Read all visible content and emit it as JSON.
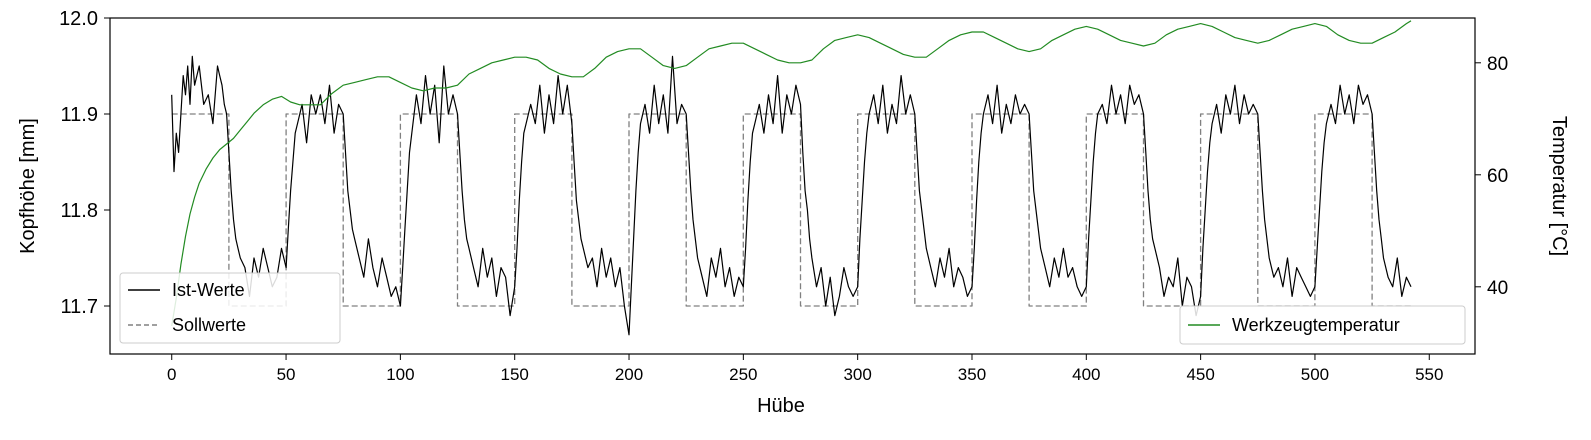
{
  "chart_data": {
    "type": "line",
    "xlabel": "Hübe",
    "ylabel_left": "Kopfhöhe [mm]",
    "ylabel_right": "Temperatur [°C]",
    "xlim": [
      -27,
      570
    ],
    "ylim_left": [
      11.65,
      12.0
    ],
    "ylim_right": [
      28.0,
      88.0
    ],
    "x_ticks": [
      0,
      50,
      100,
      150,
      200,
      250,
      300,
      350,
      400,
      450,
      500,
      550
    ],
    "x_tick_labels": [
      "0",
      "50",
      "100",
      "150",
      "200",
      "250",
      "300",
      "350",
      "400",
      "450",
      "500",
      "550"
    ],
    "y_left_ticks": [
      11.7,
      11.8,
      11.9,
      12.0
    ],
    "y_left_tick_labels": [
      "11.7",
      "11.8",
      "11.9",
      "12.0"
    ],
    "y_right_ticks": [
      40,
      60,
      80
    ],
    "y_right_tick_labels": [
      "40",
      "60",
      "80"
    ],
    "grid": false,
    "legend_left_position": "lower-left",
    "legend_right_position": "lower-right",
    "legend_left": [
      {
        "label": "Ist-Werte",
        "color": "#000000",
        "style": "solid"
      },
      {
        "label": "Sollwerte",
        "color": "#808080",
        "style": "dashed"
      }
    ],
    "legend_right": [
      {
        "label": "Werkzeugtemperatur",
        "color": "#228B22",
        "style": "solid"
      }
    ],
    "series": [
      {
        "name": "Sollwerte",
        "axis": "left",
        "color": "#808080",
        "style": "dashed",
        "x": [
          0,
          25,
          25,
          50,
          50,
          75,
          75,
          100,
          100,
          125,
          125,
          150,
          150,
          175,
          175,
          200,
          200,
          225,
          225,
          250,
          250,
          275,
          275,
          300,
          300,
          325,
          325,
          350,
          350,
          375,
          375,
          400,
          400,
          425,
          425,
          450,
          450,
          475,
          475,
          500,
          500,
          525,
          525,
          542
        ],
        "y": [
          11.9,
          11.9,
          11.7,
          11.7,
          11.9,
          11.9,
          11.7,
          11.7,
          11.9,
          11.9,
          11.7,
          11.7,
          11.9,
          11.9,
          11.7,
          11.7,
          11.9,
          11.9,
          11.7,
          11.7,
          11.9,
          11.9,
          11.7,
          11.7,
          11.9,
          11.9,
          11.7,
          11.7,
          11.9,
          11.9,
          11.7,
          11.7,
          11.9,
          11.9,
          11.7,
          11.7,
          11.9,
          11.9,
          11.7,
          11.7,
          11.9,
          11.9,
          11.7,
          11.7
        ]
      },
      {
        "name": "Ist-Werte",
        "axis": "left",
        "color": "#000000",
        "style": "solid",
        "x": [
          0,
          1,
          2,
          3,
          4,
          5,
          6,
          7,
          8,
          9,
          10,
          12,
          14,
          16,
          18,
          20,
          21,
          22,
          23,
          24,
          25,
          26,
          27,
          28,
          29,
          30,
          32,
          34,
          36,
          38,
          40,
          42,
          44,
          46,
          48,
          50,
          51,
          52,
          53,
          54,
          55,
          57,
          59,
          61,
          63,
          65,
          67,
          69,
          71,
          73,
          75,
          76,
          77,
          78,
          79,
          80,
          82,
          84,
          86,
          88,
          90,
          92,
          94,
          96,
          98,
          100,
          101,
          102,
          103,
          104,
          105,
          107,
          109,
          111,
          113,
          115,
          117,
          119,
          121,
          123,
          125,
          126,
          127,
          128,
          129,
          130,
          132,
          134,
          136,
          138,
          140,
          142,
          144,
          146,
          148,
          150,
          151,
          152,
          153,
          154,
          155,
          157,
          159,
          161,
          163,
          165,
          167,
          169,
          171,
          173,
          175,
          176,
          177,
          178,
          179,
          180,
          182,
          184,
          186,
          188,
          190,
          192,
          194,
          196,
          198,
          200,
          201,
          202,
          203,
          204,
          205,
          207,
          209,
          211,
          213,
          215,
          217,
          219,
          221,
          223,
          225,
          226,
          227,
          228,
          229,
          230,
          232,
          234,
          236,
          238,
          240,
          242,
          244,
          246,
          248,
          250,
          251,
          252,
          253,
          254,
          255,
          257,
          259,
          261,
          263,
          265,
          267,
          269,
          271,
          273,
          275,
          276,
          277,
          278,
          279,
          280,
          282,
          284,
          286,
          288,
          290,
          292,
          294,
          296,
          298,
          300,
          301,
          302,
          303,
          304,
          305,
          307,
          309,
          311,
          313,
          315,
          317,
          319,
          321,
          323,
          325,
          326,
          327,
          328,
          329,
          330,
          332,
          334,
          336,
          338,
          340,
          342,
          344,
          346,
          348,
          350,
          351,
          352,
          353,
          354,
          355,
          357,
          359,
          361,
          363,
          365,
          367,
          369,
          371,
          373,
          375,
          376,
          377,
          378,
          379,
          380,
          382,
          384,
          386,
          388,
          390,
          392,
          394,
          396,
          398,
          400,
          401,
          402,
          403,
          404,
          405,
          407,
          409,
          411,
          413,
          415,
          417,
          419,
          421,
          423,
          425,
          426,
          427,
          428,
          429,
          430,
          432,
          434,
          436,
          438,
          440,
          442,
          444,
          446,
          448,
          450,
          451,
          452,
          453,
          454,
          455,
          457,
          459,
          461,
          463,
          465,
          467,
          469,
          471,
          473,
          475,
          476,
          477,
          478,
          479,
          480,
          482,
          484,
          486,
          488,
          490,
          492,
          494,
          496,
          498,
          500,
          501,
          502,
          503,
          504,
          505,
          507,
          509,
          511,
          513,
          515,
          517,
          519,
          521,
          523,
          525,
          526,
          527,
          528,
          529,
          530,
          532,
          534,
          536,
          538,
          540,
          542
        ],
        "y": [
          11.92,
          11.84,
          11.88,
          11.86,
          11.9,
          11.94,
          11.92,
          11.95,
          11.91,
          11.96,
          11.93,
          11.95,
          11.91,
          11.92,
          11.89,
          11.95,
          11.94,
          11.93,
          11.91,
          11.9,
          11.86,
          11.82,
          11.79,
          11.77,
          11.76,
          11.75,
          11.74,
          11.71,
          11.75,
          11.73,
          11.76,
          11.74,
          11.72,
          11.73,
          11.76,
          11.74,
          11.78,
          11.82,
          11.85,
          11.88,
          11.89,
          11.91,
          11.87,
          11.92,
          11.9,
          11.92,
          11.89,
          11.93,
          11.88,
          11.91,
          11.9,
          11.86,
          11.82,
          11.8,
          11.78,
          11.77,
          11.75,
          11.73,
          11.77,
          11.74,
          11.72,
          11.75,
          11.73,
          11.71,
          11.72,
          11.7,
          11.74,
          11.78,
          11.82,
          11.86,
          11.88,
          11.92,
          11.89,
          11.94,
          11.9,
          11.93,
          11.87,
          11.95,
          11.9,
          11.92,
          11.9,
          11.86,
          11.82,
          11.79,
          11.77,
          11.76,
          11.74,
          11.72,
          11.76,
          11.73,
          11.75,
          11.71,
          11.74,
          11.73,
          11.69,
          11.72,
          11.76,
          11.81,
          11.85,
          11.88,
          11.89,
          11.91,
          11.89,
          11.93,
          11.88,
          11.92,
          11.89,
          11.94,
          11.9,
          11.93,
          11.89,
          11.85,
          11.81,
          11.79,
          11.77,
          11.76,
          11.74,
          11.75,
          11.72,
          11.76,
          11.73,
          11.75,
          11.72,
          11.74,
          11.7,
          11.67,
          11.72,
          11.77,
          11.82,
          11.86,
          11.89,
          11.91,
          11.88,
          11.93,
          11.89,
          11.92,
          11.88,
          11.96,
          11.89,
          11.91,
          11.9,
          11.86,
          11.82,
          11.79,
          11.77,
          11.75,
          11.73,
          11.71,
          11.75,
          11.73,
          11.76,
          11.72,
          11.74,
          11.71,
          11.73,
          11.72,
          11.76,
          11.81,
          11.85,
          11.88,
          11.89,
          11.91,
          11.88,
          11.92,
          11.89,
          11.94,
          11.88,
          11.92,
          11.9,
          11.93,
          11.91,
          11.86,
          11.82,
          11.8,
          11.77,
          11.75,
          11.72,
          11.74,
          11.7,
          11.73,
          11.69,
          11.71,
          11.74,
          11.72,
          11.71,
          11.72,
          11.77,
          11.81,
          11.85,
          11.88,
          11.9,
          11.92,
          11.89,
          11.93,
          11.88,
          11.91,
          11.89,
          11.94,
          11.9,
          11.92,
          11.9,
          11.86,
          11.82,
          11.8,
          11.78,
          11.76,
          11.74,
          11.72,
          11.75,
          11.73,
          11.76,
          11.72,
          11.74,
          11.73,
          11.71,
          11.72,
          11.76,
          11.81,
          11.85,
          11.88,
          11.9,
          11.92,
          11.89,
          11.93,
          11.88,
          11.91,
          11.89,
          11.92,
          11.9,
          11.91,
          11.9,
          11.86,
          11.82,
          11.8,
          11.78,
          11.76,
          11.74,
          11.72,
          11.75,
          11.73,
          11.76,
          11.73,
          11.74,
          11.72,
          11.71,
          11.72,
          11.77,
          11.81,
          11.85,
          11.88,
          11.9,
          11.91,
          11.89,
          11.93,
          11.9,
          11.92,
          11.89,
          11.93,
          11.91,
          11.92,
          11.9,
          11.86,
          11.82,
          11.79,
          11.77,
          11.76,
          11.74,
          11.71,
          11.73,
          11.72,
          11.75,
          11.7,
          11.73,
          11.72,
          11.69,
          11.71,
          11.76,
          11.8,
          11.84,
          11.87,
          11.89,
          11.91,
          11.88,
          11.92,
          11.9,
          11.93,
          11.89,
          11.92,
          11.9,
          11.91,
          11.9,
          11.86,
          11.82,
          11.79,
          11.77,
          11.75,
          11.73,
          11.74,
          11.72,
          11.75,
          11.71,
          11.74,
          11.73,
          11.72,
          11.71,
          11.72,
          11.76,
          11.8,
          11.84,
          11.87,
          11.89,
          11.91,
          11.89,
          11.93,
          11.9,
          11.92,
          11.89,
          11.93,
          11.91,
          11.92,
          11.9,
          11.86,
          11.82,
          11.79,
          11.77,
          11.75,
          11.73,
          11.72,
          11.75,
          11.71,
          11.73,
          11.72
        ]
      },
      {
        "name": "Werkzeugtemperatur",
        "axis": "right",
        "color": "#228B22",
        "style": "solid",
        "x": [
          0,
          2,
          4,
          6,
          8,
          10,
          12,
          15,
          18,
          21,
          24,
          27,
          30,
          33,
          36,
          40,
          44,
          48,
          52,
          56,
          60,
          65,
          70,
          75,
          80,
          85,
          90,
          95,
          100,
          105,
          110,
          115,
          120,
          125,
          130,
          135,
          140,
          145,
          150,
          155,
          160,
          165,
          170,
          175,
          180,
          185,
          190,
          195,
          200,
          205,
          210,
          215,
          220,
          225,
          230,
          235,
          240,
          245,
          250,
          255,
          260,
          265,
          270,
          275,
          280,
          285,
          290,
          295,
          300,
          305,
          310,
          315,
          320,
          325,
          330,
          335,
          340,
          345,
          350,
          355,
          360,
          365,
          370,
          375,
          380,
          385,
          390,
          395,
          400,
          405,
          410,
          415,
          420,
          425,
          430,
          435,
          440,
          445,
          450,
          455,
          460,
          465,
          470,
          475,
          480,
          485,
          490,
          495,
          500,
          505,
          510,
          515,
          520,
          525,
          530,
          535,
          540,
          542
        ],
        "y": [
          33,
          38,
          44,
          49,
          53,
          56,
          58.5,
          61,
          63,
          64.5,
          65.5,
          66.5,
          68,
          69.5,
          71,
          72.5,
          73.5,
          74,
          73,
          72.5,
          72.5,
          72.5,
          74.5,
          76,
          76.5,
          77,
          77.5,
          77.5,
          76.5,
          75.5,
          75,
          75.5,
          75.5,
          76,
          78,
          79,
          80,
          80.5,
          81,
          81,
          80.5,
          79,
          78,
          77.5,
          77.5,
          79,
          81,
          82,
          82.5,
          82.5,
          81,
          79.5,
          79,
          79.5,
          81,
          82.5,
          83,
          83.5,
          83.5,
          82.5,
          81.5,
          80.5,
          80,
          80,
          80.5,
          82.5,
          84,
          84.5,
          85,
          84.5,
          83.5,
          82.5,
          81.5,
          81,
          81,
          82.5,
          84,
          85,
          85.5,
          85.5,
          84.5,
          83.5,
          82.5,
          82,
          82.5,
          84,
          85,
          86,
          86.5,
          86,
          85,
          84,
          83.5,
          83,
          83.5,
          85,
          86,
          86.5,
          87,
          86.5,
          85.5,
          84.5,
          84,
          83.5,
          84,
          85,
          86,
          86.5,
          87,
          86.5,
          85,
          84,
          83.5,
          83.5,
          84.5,
          85.5,
          87,
          87.5
        ]
      }
    ]
  }
}
